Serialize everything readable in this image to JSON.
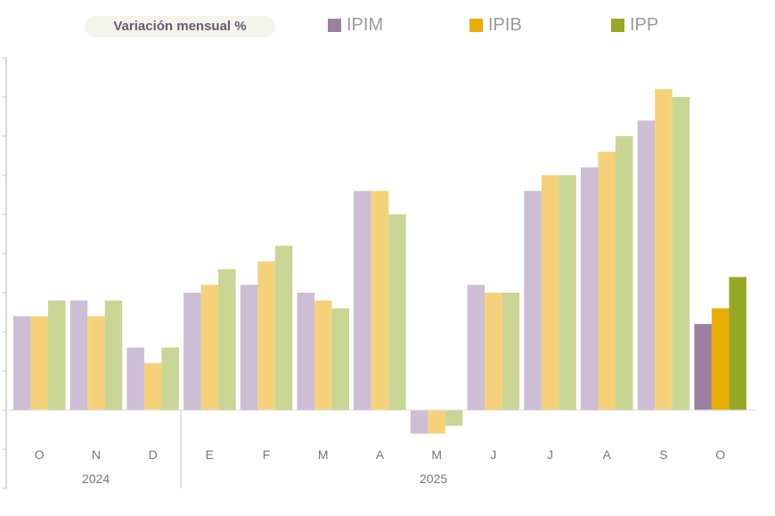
{
  "chart_data": {
    "type": "bar",
    "title": "Variación mensual %",
    "categories": [
      "O",
      "N",
      "D",
      "E",
      "F",
      "M",
      "A",
      "M",
      "J",
      "J",
      "A",
      "S",
      "O"
    ],
    "year_labels": [
      {
        "label": "2024",
        "months": [
          "O",
          "N",
          "D"
        ]
      },
      {
        "label": "2025",
        "months": [
          "E",
          "F",
          "M",
          "A",
          "M",
          "J",
          "J",
          "A",
          "S",
          "O"
        ]
      }
    ],
    "series": [
      {
        "name": "IPIM",
        "color": "#cdbdd5",
        "highlight_color": "#9b7fa0",
        "values": [
          0.24,
          0.28,
          0.16,
          0.3,
          0.32,
          0.3,
          0.56,
          -0.06,
          0.32,
          0.56,
          0.62,
          0.74,
          0.22
        ]
      },
      {
        "name": "IPIB",
        "color": "#f5d27a",
        "highlight_color": "#e8ad00",
        "values": [
          0.24,
          0.24,
          0.12,
          0.32,
          0.38,
          0.28,
          0.56,
          -0.06,
          0.3,
          0.6,
          0.66,
          0.82,
          0.26
        ]
      },
      {
        "name": "IPP",
        "color": "#c9d595",
        "highlight_color": "#95a828",
        "values": [
          0.28,
          0.28,
          0.16,
          0.36,
          0.42,
          0.26,
          0.5,
          -0.04,
          0.3,
          0.6,
          0.7,
          0.8,
          0.34
        ]
      }
    ],
    "highlighted_category_index": 12,
    "ylim": [
      -0.2,
      0.9
    ],
    "ytick_step": 0.1,
    "ytick_labels_shown": false,
    "grid": false,
    "legend": "top"
  }
}
